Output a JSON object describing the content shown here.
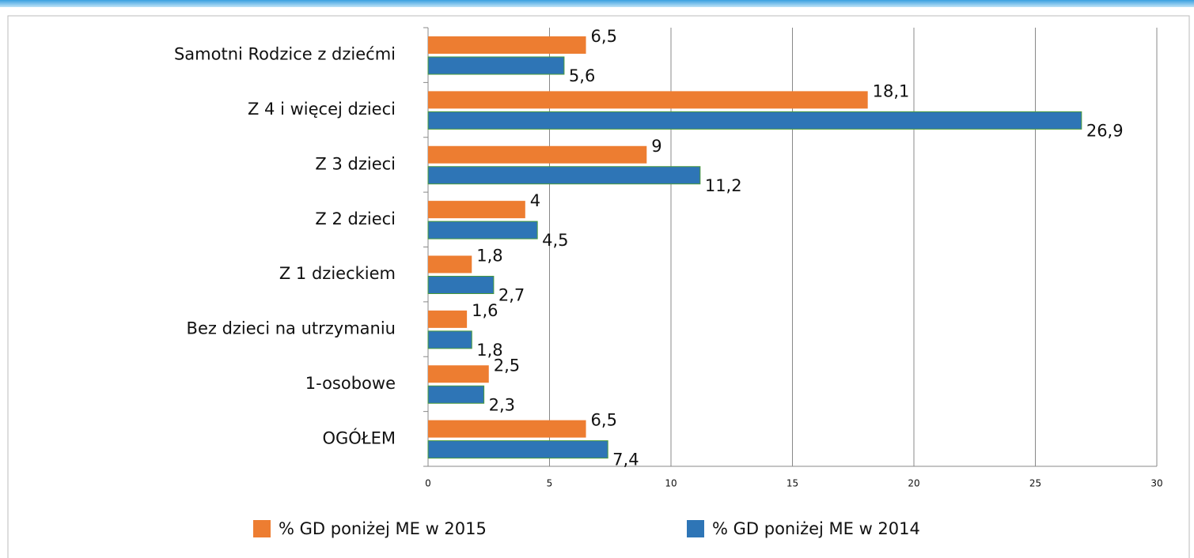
{
  "chart_data": {
    "type": "bar",
    "orientation": "horizontal",
    "categories": [
      "Samotni Rodzice z dziećmi",
      "Z 4 i więcej dzieci",
      "Z 3 dzieci",
      "Z 2 dzieci",
      "Z 1 dzieckiem",
      "Bez dzieci na utrzymaniu",
      "1-osobowe",
      "OGÓŁEM"
    ],
    "series": [
      {
        "name": "% GD poniżej ME w 2015",
        "color": "#ed7d31",
        "values": [
          6.5,
          18.1,
          9,
          4,
          1.8,
          1.6,
          2.5,
          6.5
        ],
        "value_labels": [
          "6,5",
          "18,1",
          "9",
          "4",
          "1,8",
          "1,6",
          "2,5",
          "6,5"
        ]
      },
      {
        "name": "% GD poniżej ME w 2014",
        "color": "#2e75b6",
        "values": [
          5.6,
          26.9,
          11.2,
          4.5,
          2.7,
          1.8,
          2.3,
          7.4
        ],
        "value_labels": [
          "5,6",
          "26,9",
          "11,2",
          "4,5",
          "2,7",
          "1,8",
          "2,3",
          "7,4"
        ]
      }
    ],
    "xlim": [
      0,
      30
    ],
    "xticks": [
      0,
      5,
      10,
      15,
      20,
      25,
      30
    ],
    "grid": true,
    "legend": "bottom"
  }
}
